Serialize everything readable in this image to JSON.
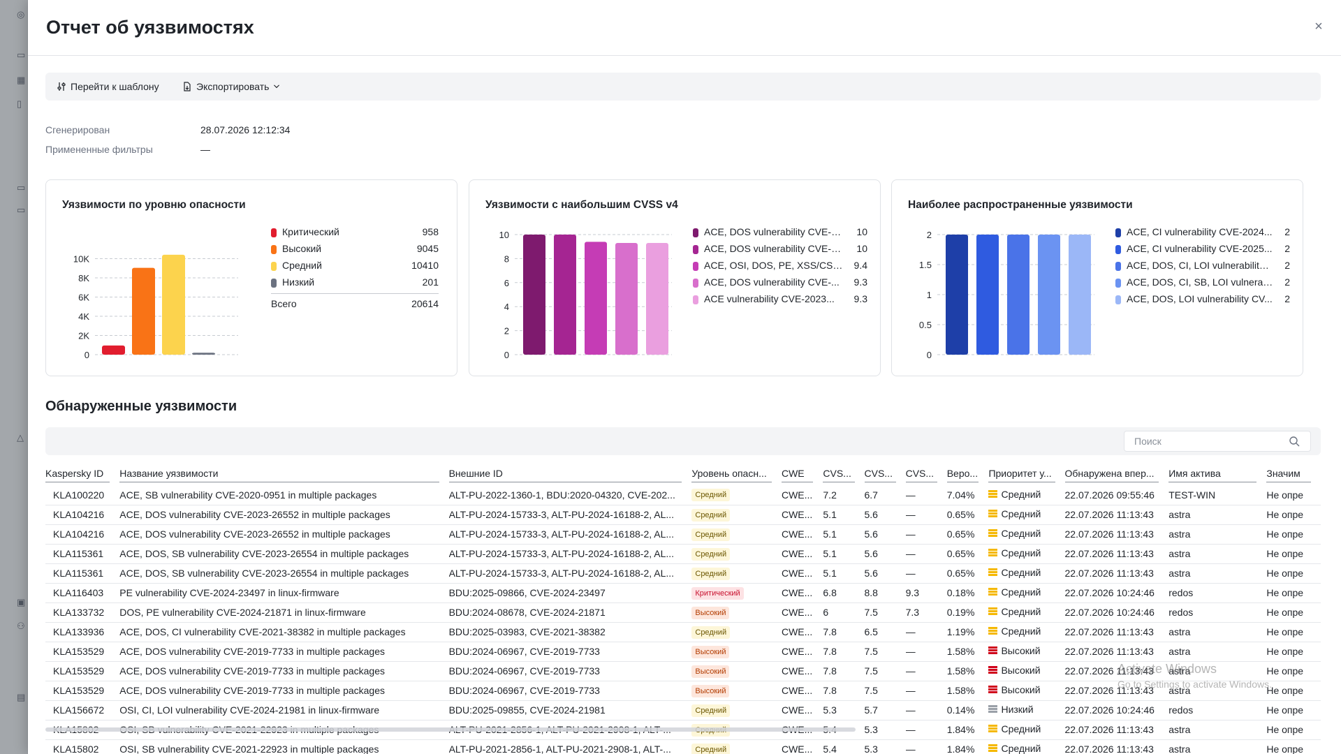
{
  "panel": {
    "title": "Отчет об уязвимостях",
    "close_icon": "×"
  },
  "toolbar": {
    "template_label": "Перейти к шаблону",
    "export_label": "Экспортировать"
  },
  "meta": {
    "generated_label": "Сгенерирован",
    "generated_value": "28.07.2026 12:12:34",
    "filters_label": "Примененные фильтры",
    "filters_value": "—"
  },
  "cards": {
    "severity_title": "Уязвимости по уровню опасности",
    "cvss_title": "Уязвимости с наибольшим CVSS v4",
    "common_title": "Наиболее распространенные уязвимости"
  },
  "chart_data": [
    {
      "type": "bar",
      "title": "Уязвимости по уровню опасности",
      "categories": [
        "Критический",
        "Высокий",
        "Средний",
        "Низкий"
      ],
      "values": [
        958,
        9045,
        10410,
        201
      ],
      "colors": [
        "#e11d2e",
        "#f97316",
        "#fcd34d",
        "#6b7280"
      ],
      "ylim": [
        0,
        12000
      ],
      "yticks": [
        0,
        2000,
        4000,
        6000,
        8000,
        10000
      ],
      "ytick_labels": [
        "0",
        "2K",
        "4K",
        "6K",
        "8K",
        "10K"
      ],
      "total_label": "Всего",
      "total_value": "20614",
      "legend_values": [
        "958",
        "9045",
        "10410",
        "201"
      ],
      "grid": true
    },
    {
      "type": "bar",
      "title": "Уязвимости с наибольшим CVSS v4",
      "categories": [
        "ACE, DOS vulnerability CVE-2...",
        "ACE, DOS vulnerability CVE-2...",
        "ACE, OSI, DOS, PE, XSS/CSS,...",
        "ACE, DOS vulnerability CVE-...",
        "ACE vulnerability CVE-2023..."
      ],
      "values": [
        10,
        10,
        9.4,
        9.3,
        9.3
      ],
      "legend_values": [
        "10",
        "10",
        "9.4",
        "9.3",
        "9.3"
      ],
      "colors": [
        "#7e1a6e",
        "#a52592",
        "#c53cb5",
        "#d86fcc",
        "#ea9fdf"
      ],
      "ylim": [
        0,
        10
      ],
      "yticks": [
        0,
        2,
        4,
        6,
        8,
        10
      ],
      "ytick_labels": [
        "0",
        "2",
        "4",
        "6",
        "8",
        "10"
      ],
      "grid": true
    },
    {
      "type": "bar",
      "title": "Наиболее распространенные уязвимости",
      "categories": [
        "ACE, CI vulnerability CVE-2024...",
        "ACE, CI vulnerability CVE-2025...",
        "ACE, DOS, CI, LOI vulnerability ...",
        "ACE, DOS, CI, SB, LOI vulnerabi...",
        "ACE, DOS, LOI vulnerability CV..."
      ],
      "values": [
        2,
        2,
        2,
        2,
        2
      ],
      "legend_values": [
        "2",
        "2",
        "2",
        "2",
        "2"
      ],
      "colors": [
        "#1e3fa8",
        "#2f5be0",
        "#4a73e8",
        "#6b93f2",
        "#9bb7f7"
      ],
      "ylim": [
        0,
        2
      ],
      "yticks": [
        0,
        0.5,
        1,
        1.5,
        2
      ],
      "ytick_labels": [
        "0",
        "0.5",
        "1",
        "1.5",
        "2"
      ],
      "grid": true
    }
  ],
  "vuln_section": {
    "title": "Обнаруженные уязвимости",
    "search_placeholder": "Поиск",
    "columns": [
      "Kaspersky ID",
      "Название уязвимости",
      "Внешние ID",
      "Уровень опасн...",
      "CWE",
      "CVS...",
      "CVS...",
      "CVS...",
      "Веро...",
      "Приоритет у...",
      "Обнаружена впер...",
      "Имя актива",
      "Значим"
    ],
    "rows": [
      [
        "KLA100220",
        "ACE, SB vulnerability CVE-2020-0951 in multiple packages",
        "ALT-PU-2022-1360-1, BDU:2020-04320, CVE-202...",
        "Средний",
        "CWE...",
        "7.2",
        "6.7",
        "—",
        "7.04%",
        "Средний",
        "22.07.2026 09:55:46",
        "TEST-WIN",
        "Не опре"
      ],
      [
        "KLA104216",
        "ACE, DOS vulnerability CVE-2023-26552 in multiple packages",
        "ALT-PU-2024-15733-3, ALT-PU-2024-16188-2, AL...",
        "Средний",
        "CWE...",
        "5.1",
        "5.6",
        "—",
        "0.65%",
        "Средний",
        "22.07.2026 11:13:43",
        "astra",
        "Не опре"
      ],
      [
        "KLA104216",
        "ACE, DOS vulnerability CVE-2023-26552 in multiple packages",
        "ALT-PU-2024-15733-3, ALT-PU-2024-16188-2, AL...",
        "Средний",
        "CWE...",
        "5.1",
        "5.6",
        "—",
        "0.65%",
        "Средний",
        "22.07.2026 11:13:43",
        "astra",
        "Не опре"
      ],
      [
        "KLA115361",
        "ACE, DOS, SB vulnerability CVE-2023-26554 in multiple packages",
        "ALT-PU-2024-15733-3, ALT-PU-2024-16188-2, AL...",
        "Средний",
        "CWE...",
        "5.1",
        "5.6",
        "—",
        "0.65%",
        "Средний",
        "22.07.2026 11:13:43",
        "astra",
        "Не опре"
      ],
      [
        "KLA115361",
        "ACE, DOS, SB vulnerability CVE-2023-26554 in multiple packages",
        "ALT-PU-2024-15733-3, ALT-PU-2024-16188-2, AL...",
        "Средний",
        "CWE...",
        "5.1",
        "5.6",
        "—",
        "0.65%",
        "Средний",
        "22.07.2026 11:13:43",
        "astra",
        "Не опре"
      ],
      [
        "KLA116403",
        "PE vulnerability CVE-2024-23497 in linux-firmware",
        "BDU:2025-09866, CVE-2024-23497",
        "Критический",
        "CWE...",
        "6.8",
        "8.8",
        "9.3",
        "0.18%",
        "Средний",
        "22.07.2026 10:24:46",
        "redos",
        "Не опре"
      ],
      [
        "KLA133732",
        "DOS, PE vulnerability CVE-2024-21871 in linux-firmware",
        "BDU:2024-08678, CVE-2024-21871",
        "Высокий",
        "CWE...",
        "6",
        "7.5",
        "7.3",
        "0.19%",
        "Средний",
        "22.07.2026 10:24:46",
        "redos",
        "Не опре"
      ],
      [
        "KLA133936",
        "ACE, DOS, CI vulnerability CVE-2021-38382 in multiple packages",
        "BDU:2025-03983, CVE-2021-38382",
        "Средний",
        "CWE...",
        "7.8",
        "6.5",
        "—",
        "1.19%",
        "Средний",
        "22.07.2026 11:13:43",
        "astra",
        "Не опре"
      ],
      [
        "KLA153529",
        "ACE, DOS vulnerability CVE-2019-7733 in multiple packages",
        "BDU:2024-06967, CVE-2019-7733",
        "Высокий",
        "CWE...",
        "7.8",
        "7.5",
        "—",
        "1.58%",
        "Высокий",
        "22.07.2026 11:13:43",
        "astra",
        "Не опре"
      ],
      [
        "KLA153529",
        "ACE, DOS vulnerability CVE-2019-7733 in multiple packages",
        "BDU:2024-06967, CVE-2019-7733",
        "Высокий",
        "CWE...",
        "7.8",
        "7.5",
        "—",
        "1.58%",
        "Высокий",
        "22.07.2026 11:13:43",
        "astra",
        "Не опре"
      ],
      [
        "KLA153529",
        "ACE, DOS vulnerability CVE-2019-7733 in multiple packages",
        "BDU:2024-06967, CVE-2019-7733",
        "Высокий",
        "CWE...",
        "7.8",
        "7.5",
        "—",
        "1.58%",
        "Высокий",
        "22.07.2026 11:13:43",
        "astra",
        "Не опре"
      ],
      [
        "KLA156672",
        "OSI, CI, LOI vulnerability CVE-2024-21981 in linux-firmware",
        "BDU:2025-09855, CVE-2024-21981",
        "Средний",
        "CWE...",
        "5.3",
        "5.7",
        "—",
        "0.14%",
        "Низкий",
        "22.07.2026 10:24:46",
        "redos",
        "Не опре"
      ],
      [
        "KLA15802",
        "OSI, SB vulnerability CVE-2021-22923 in multiple packages",
        "ALT-PU-2021-2856-1, ALT-PU-2021-2908-1, ALT-...",
        "Средний",
        "CWE...",
        "5.4",
        "5.3",
        "—",
        "1.84%",
        "Средний",
        "22.07.2026 11:13:43",
        "astra",
        "Не опре"
      ],
      [
        "KLA15802",
        "OSI, SB vulnerability CVE-2021-22923 in multiple packages",
        "ALT-PU-2021-2856-1, ALT-PU-2021-2908-1, ALT-...",
        "Средний",
        "CWE...",
        "5.4",
        "5.3",
        "—",
        "1.84%",
        "Средний",
        "22.07.2026 11:13:43",
        "astra",
        "Не опре"
      ]
    ]
  },
  "watermark": {
    "line1": "Activate Windows",
    "line2": "Go to Settings to activate Windows."
  },
  "colors": {
    "sev_mid": "#fdf6d8",
    "sev_high": "#fde6dc",
    "sev_crit": "#fde2e4",
    "prio_mid": "#f5b800",
    "prio_high": "#d0021b",
    "prio_low": "#9aa0a8"
  }
}
